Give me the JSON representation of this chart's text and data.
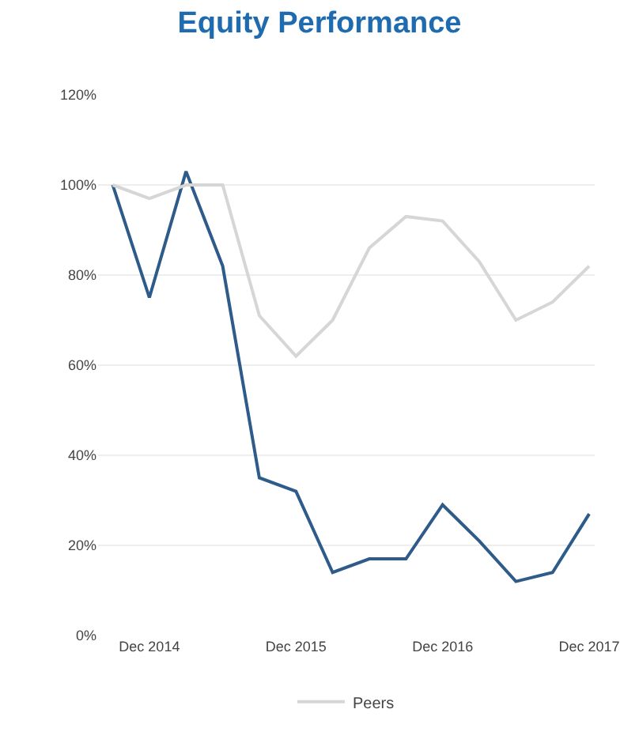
{
  "chart_data": {
    "type": "line",
    "title": "Equity Performance",
    "categories": [
      null,
      "Dec 2014",
      null,
      null,
      null,
      "Dec 2015",
      null,
      null,
      null,
      "Dec 2016",
      null,
      null,
      null,
      "Dec 2017"
    ],
    "series": [
      {
        "color": "#2e5b8a",
        "values": [
          100,
          75,
          103,
          82,
          35,
          32,
          14,
          17,
          17,
          29,
          21,
          12,
          14,
          27
        ]
      },
      {
        "name": "Peers",
        "color": "#d6d6d6",
        "values": [
          100,
          97,
          100,
          100,
          71,
          62,
          70,
          86,
          93,
          92,
          83,
          70,
          74,
          82
        ]
      }
    ],
    "ylim": [
      0,
      120
    ],
    "yticks": [
      {
        "value": 0,
        "label": "0%"
      },
      {
        "value": 20,
        "label": "20%"
      },
      {
        "value": 40,
        "label": "40%"
      },
      {
        "value": 60,
        "label": "60%"
      },
      {
        "value": 80,
        "label": "80%"
      },
      {
        "value": 100,
        "label": "100%"
      },
      {
        "value": 120,
        "label": "120%"
      }
    ],
    "grid": "y",
    "legend": "bottom",
    "marker": "none",
    "line_style": "solid"
  }
}
